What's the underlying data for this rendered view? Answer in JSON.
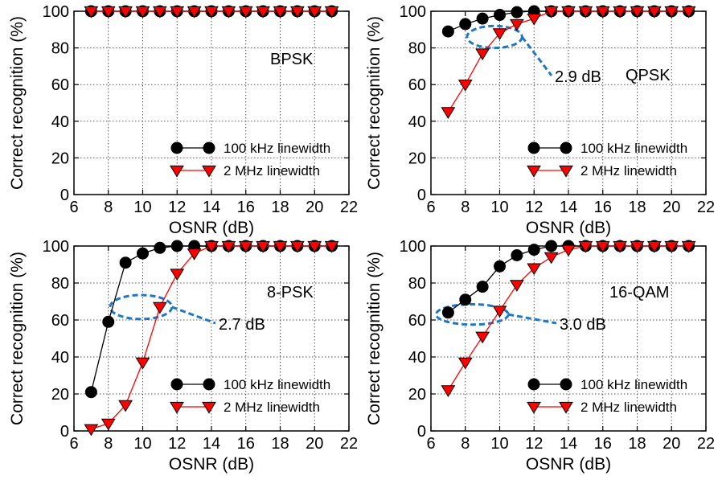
{
  "chart_data": [
    {
      "type": "line",
      "panel_label": "BPSK",
      "xlabel": "OSNR (dB)",
      "ylabel": "Correct recognition (%)",
      "xlim": [
        6,
        22
      ],
      "ylim": [
        0,
        100
      ],
      "xticks": [
        6,
        8,
        10,
        12,
        14,
        16,
        18,
        20,
        22
      ],
      "yticks": [
        0,
        20,
        40,
        60,
        80,
        100
      ],
      "grid": true,
      "legend": "bottom-right",
      "x": [
        7,
        8,
        9,
        10,
        11,
        12,
        13,
        14,
        15,
        16,
        17,
        18,
        19,
        20,
        21
      ],
      "series": [
        {
          "name": "100 kHz linewidth",
          "color": "#000000",
          "marker": "circle",
          "values": [
            100,
            100,
            100,
            100,
            100,
            100,
            100,
            100,
            100,
            100,
            100,
            100,
            100,
            100,
            100
          ]
        },
        {
          "name": "2 MHz linewidth",
          "color": "#ff0000",
          "marker": "triangle-down",
          "values": [
            100,
            100,
            100,
            100,
            100,
            100,
            100,
            100,
            100,
            100,
            100,
            100,
            100,
            100,
            100
          ]
        }
      ],
      "annotation": ""
    },
    {
      "type": "line",
      "panel_label": "QPSK",
      "xlabel": "OSNR (dB)",
      "ylabel": "Correct recognition (%)",
      "xlim": [
        6,
        22
      ],
      "ylim": [
        0,
        100
      ],
      "xticks": [
        6,
        8,
        10,
        12,
        14,
        16,
        18,
        20,
        22
      ],
      "yticks": [
        0,
        20,
        40,
        60,
        80,
        100
      ],
      "grid": true,
      "legend": "bottom-right",
      "x": [
        7,
        8,
        9,
        10,
        11,
        12,
        13,
        14,
        15,
        16,
        17,
        18,
        19,
        20,
        21
      ],
      "series": [
        {
          "name": "100 kHz linewidth",
          "color": "#000000",
          "marker": "circle",
          "values": [
            89,
            93,
            96,
            98,
            99.5,
            100,
            100,
            100,
            100,
            100,
            100,
            100,
            100,
            100,
            100
          ]
        },
        {
          "name": "2 MHz linewidth",
          "color": "#ff0000",
          "marker": "triangle-down",
          "values": [
            45,
            60,
            77,
            88,
            93,
            96,
            100,
            100,
            100,
            100,
            100,
            100,
            100,
            100,
            100
          ]
        }
      ],
      "annotation": "2.9 dB",
      "ellipse": {
        "cx": 9.7,
        "cy": 86,
        "rx": 1.6,
        "ry": 6
      }
    },
    {
      "type": "line",
      "panel_label": "8-PSK",
      "xlabel": "OSNR (dB)",
      "ylabel": "Correct recognition (%)",
      "xlim": [
        6,
        22
      ],
      "ylim": [
        0,
        100
      ],
      "xticks": [
        6,
        8,
        10,
        12,
        14,
        16,
        18,
        20,
        22
      ],
      "yticks": [
        0,
        20,
        40,
        60,
        80,
        100
      ],
      "grid": true,
      "legend": "bottom-right",
      "x": [
        7,
        8,
        9,
        10,
        11,
        12,
        13,
        14,
        15,
        16,
        17,
        18,
        19,
        20,
        21
      ],
      "series": [
        {
          "name": "100 kHz linewidth",
          "color": "#000000",
          "marker": "circle",
          "values": [
            21,
            59,
            91,
            96,
            99,
            100,
            100,
            100,
            100,
            100,
            100,
            100,
            100,
            100,
            100
          ]
        },
        {
          "name": "2 MHz linewidth",
          "color": "#ff0000",
          "marker": "triangle-down",
          "values": [
            1,
            4,
            14,
            37,
            67,
            85,
            96,
            100,
            100,
            100,
            100,
            100,
            100,
            100,
            100
          ]
        }
      ],
      "annotation": "2.7 dB",
      "ellipse": {
        "cx": 9.9,
        "cy": 67,
        "rx": 1.8,
        "ry": 6.5
      }
    },
    {
      "type": "line",
      "panel_label": "16-QAM",
      "xlabel": "OSNR (dB)",
      "ylabel": "Correct recognition (%)",
      "xlim": [
        6,
        22
      ],
      "ylim": [
        0,
        100
      ],
      "xticks": [
        6,
        8,
        10,
        12,
        14,
        16,
        18,
        20,
        22
      ],
      "yticks": [
        0,
        20,
        40,
        60,
        80,
        100
      ],
      "grid": true,
      "legend": "bottom-right",
      "x": [
        7,
        8,
        9,
        10,
        11,
        12,
        13,
        14,
        15,
        16,
        17,
        18,
        19,
        20,
        21
      ],
      "series": [
        {
          "name": "100 kHz linewidth",
          "color": "#000000",
          "marker": "circle",
          "values": [
            64,
            71,
            78,
            89,
            95,
            98,
            100,
            100,
            100,
            100,
            100,
            100,
            100,
            100,
            100
          ]
        },
        {
          "name": "2 MHz linewidth",
          "color": "#ff0000",
          "marker": "triangle-down",
          "values": [
            22,
            37,
            51,
            65,
            79,
            88,
            94,
            98,
            100,
            100,
            100,
            100,
            100,
            100,
            100
          ]
        }
      ],
      "annotation": "3.0 dB",
      "ellipse": {
        "cx": 8.4,
        "cy": 63,
        "rx": 2.1,
        "ry": 5.5
      }
    }
  ],
  "colors": {
    "accent_blue": "#1f77c4",
    "black_series": "#000000",
    "red_series": "#ff0000"
  }
}
